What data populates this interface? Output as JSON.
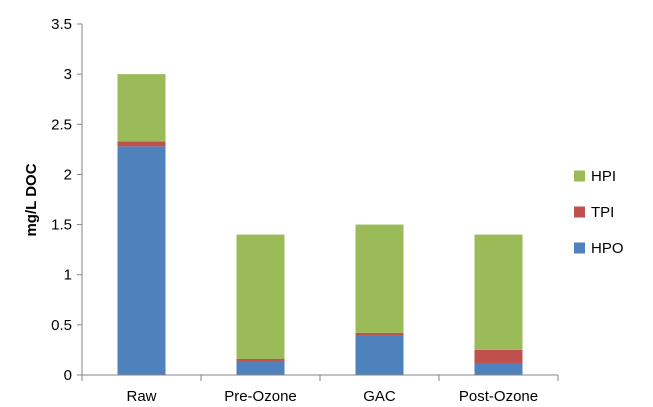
{
  "chart_data": {
    "type": "bar",
    "stacked": true,
    "title": "",
    "xlabel": "",
    "ylabel": "mg/L DOC",
    "ylim": [
      0,
      3.5
    ],
    "ytick_step": 0.5,
    "yticks": [
      "0",
      "0.5",
      "1",
      "1.5",
      "2",
      "2.5",
      "3",
      "3.5"
    ],
    "grid": false,
    "legend_position": "right",
    "categories": [
      "Raw",
      "Pre-Ozone",
      "GAC",
      "Post-Ozone"
    ],
    "series": [
      {
        "name": "HPO",
        "color": "#4F81BD",
        "values": [
          2.28,
          0.14,
          0.39,
          0.12
        ]
      },
      {
        "name": "TPI",
        "color": "#C0504D",
        "values": [
          0.05,
          0.02,
          0.03,
          0.13
        ]
      },
      {
        "name": "HPI",
        "color": "#9BBB59",
        "values": [
          0.67,
          1.24,
          1.08,
          1.15
        ]
      }
    ],
    "legend_order": [
      "HPI",
      "TPI",
      "HPO"
    ]
  }
}
